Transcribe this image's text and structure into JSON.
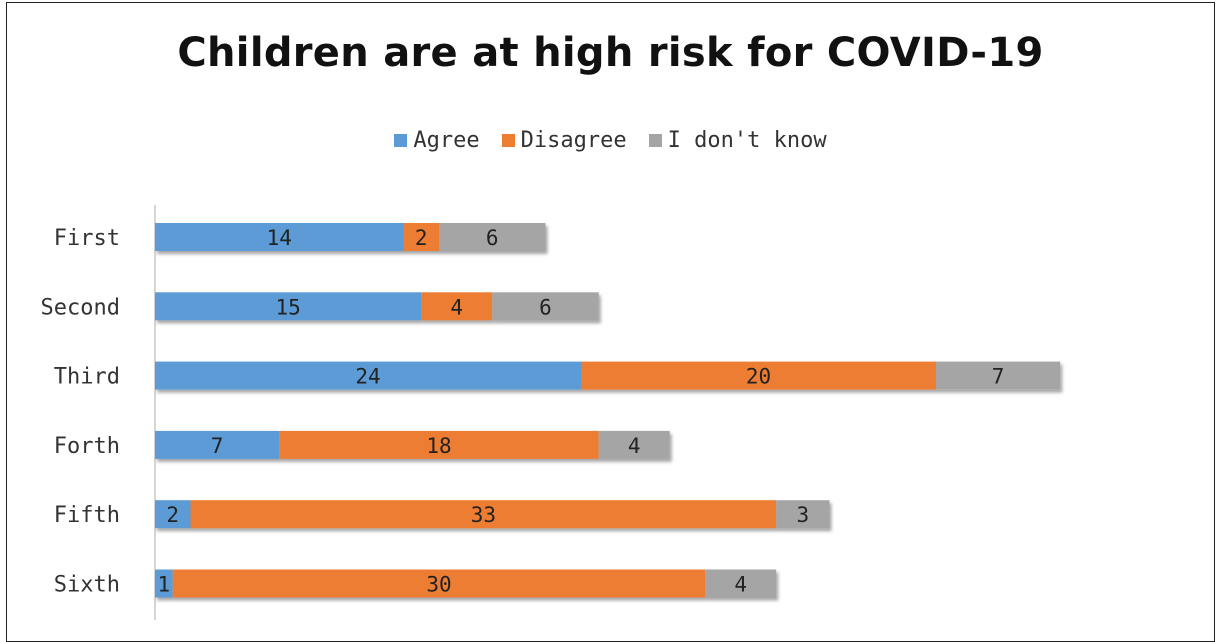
{
  "chart_data": {
    "type": "bar",
    "orientation": "horizontal",
    "stacked": true,
    "title": "Children are at high risk for COVID-19",
    "categories": [
      "First",
      "Second",
      "Third",
      "Forth",
      "Fifth",
      "Sixth"
    ],
    "series": [
      {
        "name": "Agree",
        "color": "#5b9bd5",
        "values": [
          14,
          15,
          24,
          7,
          2,
          1
        ]
      },
      {
        "name": "Disagree",
        "color": "#ed7d31",
        "values": [
          2,
          4,
          20,
          18,
          33,
          30
        ]
      },
      {
        "name": "I don't know",
        "color": "#a5a5a5",
        "values": [
          6,
          6,
          7,
          4,
          3,
          4
        ]
      }
    ],
    "xlim": [
      0,
      55
    ],
    "grid": false,
    "legend_position": "top"
  }
}
